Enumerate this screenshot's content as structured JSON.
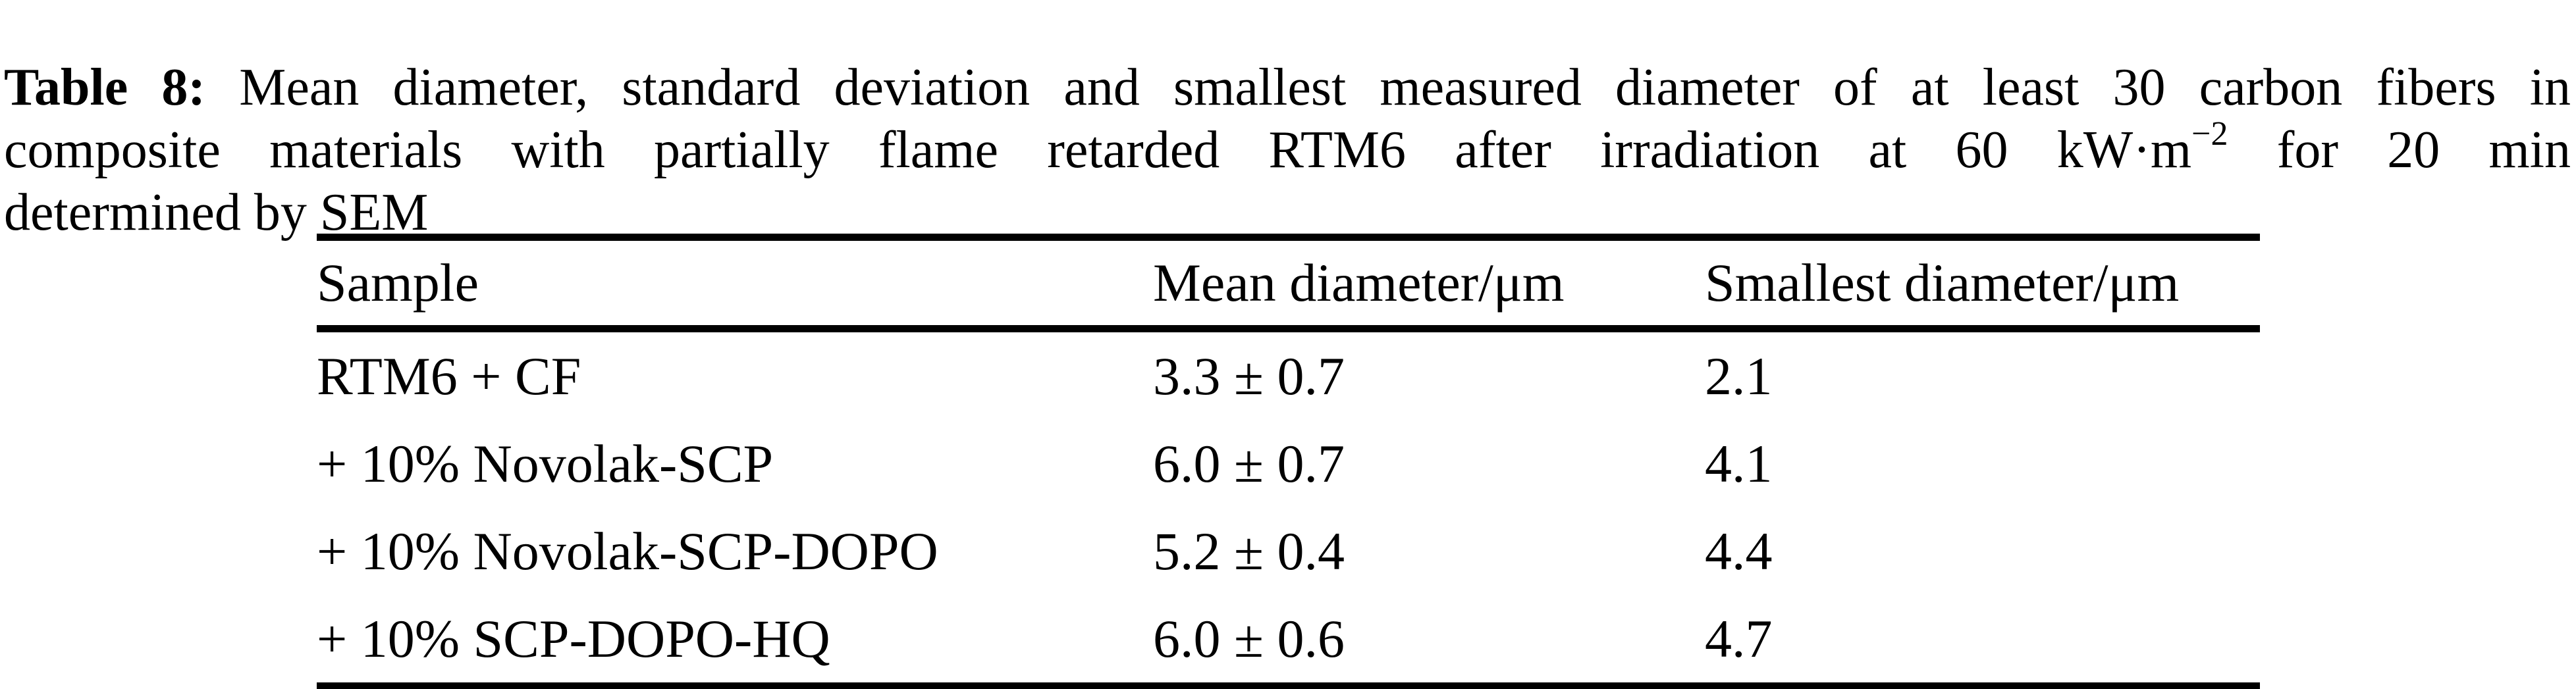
{
  "caption": {
    "label": "Table 8:",
    "line1_rest": " Mean diameter, standard deviation and smallest measured diameter of at least 30 carbon fibers in",
    "line2_pre": "composite materials with partially flame retarded RTM6 after irradiation at 60 kW·m",
    "line2_sup": "−2",
    "line2_post": " for 20 min",
    "line3": "determined by SEM"
  },
  "table": {
    "columns": [
      "Sample",
      "Mean diameter/μm",
      "Smallest diameter/μm"
    ],
    "rows": [
      {
        "sample": "RTM6 + CF",
        "mean": "3.3 ± 0.7",
        "smallest": "2.1"
      },
      {
        "sample": "+ 10% Novolak-SCP",
        "mean": "6.0 ± 0.7",
        "smallest": "4.1"
      },
      {
        "sample": "+ 10% Novolak-SCP-DOPO",
        "mean": "5.2 ± 0.4",
        "smallest": "4.4"
      },
      {
        "sample": "+ 10% SCP-DOPO-HQ",
        "mean": "6.0 ± 0.6",
        "smallest": "4.7"
      }
    ]
  },
  "colors": {
    "text": "#000000",
    "background": "#ffffff",
    "rule": "#000000"
  }
}
